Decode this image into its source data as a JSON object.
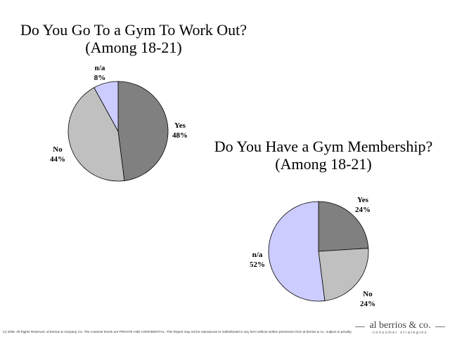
{
  "chart_data": [
    {
      "type": "pie",
      "title": "Do You Go To a Gym To Work Out?",
      "subtitle": "(Among 18-21)",
      "categories": [
        "Yes",
        "No",
        "n/a"
      ],
      "values": [
        48,
        44,
        8
      ],
      "labels": [
        "Yes\n48%",
        "No\n44%",
        "n/a\n8%"
      ],
      "colors": [
        "#808080",
        "#c0c0c0",
        "#ccccff"
      ]
    },
    {
      "type": "pie",
      "title": "Do You Have a Gym Membership?",
      "subtitle": "(Among 18-21)",
      "categories": [
        "Yes",
        "No",
        "n/a"
      ],
      "values": [
        24,
        24,
        52
      ],
      "labels": [
        "Yes\n24%",
        "No\n24%",
        "n/a\n52%"
      ],
      "colors": [
        "#808080",
        "#c0c0c0",
        "#ccccff"
      ]
    }
  ],
  "footer": {
    "legal": "(c) 2006. All Rights Reserved. al berrios & company, inc. The contents herein are PRIVATE AND CONFIDENTIAL. This Report may not be reproduced or redistributed in any form without written permission from al berrios & co., subject to penalty.",
    "logo_name": "al berrios & co.",
    "logo_tagline": "consumer strategies"
  }
}
